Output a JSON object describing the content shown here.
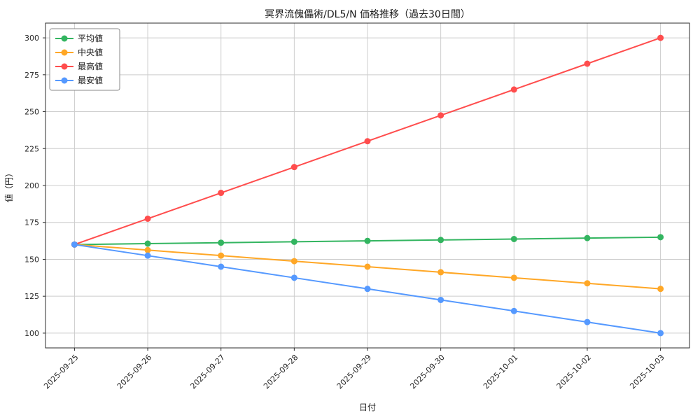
{
  "chart_data": {
    "type": "line",
    "title": "冥界流傀儡術/DL5/N 価格推移（過去30日間）",
    "xlabel": "日付",
    "ylabel": "値（円）",
    "categories": [
      "2025-09-25",
      "2025-09-26",
      "2025-09-27",
      "2025-09-28",
      "2025-09-29",
      "2025-09-30",
      "2025-10-01",
      "2025-10-02",
      "2025-10-03"
    ],
    "series": [
      {
        "key": "average",
        "name": "平均値",
        "color": "#33b560",
        "values": [
          160,
          160.63,
          161.25,
          161.88,
          162.5,
          163.13,
          163.75,
          164.38,
          165
        ]
      },
      {
        "key": "median",
        "name": "中央値",
        "color": "#ffa726",
        "values": [
          160,
          156.25,
          152.5,
          148.75,
          145,
          141.25,
          137.5,
          133.75,
          130
        ]
      },
      {
        "key": "max",
        "name": "最高値",
        "color": "#ff4d4d",
        "values": [
          160,
          177.5,
          195,
          212.5,
          230,
          247.5,
          265,
          282.5,
          300
        ]
      },
      {
        "key": "min",
        "name": "最安値",
        "color": "#5599ff",
        "values": [
          160,
          152.5,
          145,
          137.5,
          130,
          122.5,
          115,
          107.5,
          100
        ]
      }
    ],
    "ylim": [
      90,
      310
    ],
    "yticks": [
      100,
      125,
      150,
      175,
      200,
      225,
      250,
      275,
      300
    ],
    "grid": true,
    "grid_color": "#cccccc",
    "spine_color": "#2b2b2b",
    "legend_position": "upper-left",
    "tick_rotation": 45
  }
}
